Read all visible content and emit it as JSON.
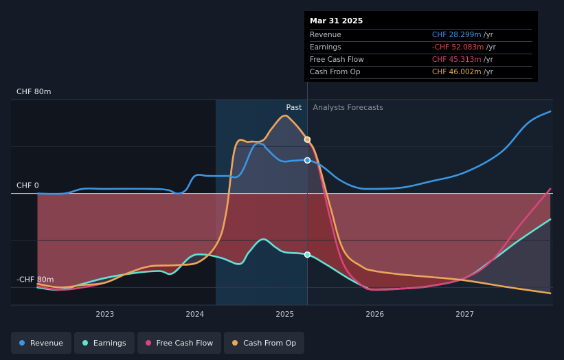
{
  "chart_data": {
    "type": "line",
    "currency": "CHF",
    "y_unit": "m",
    "ylim": [
      -95,
      80
    ],
    "xlim": [
      2022.2,
      2027.98
    ],
    "x_ticks": [
      2023,
      2024,
      2025,
      2026,
      2027
    ],
    "x_tick_labels": [
      "2023",
      "2024",
      "2025",
      "2026",
      "2027"
    ],
    "y_labels": [
      {
        "value": 80,
        "text": "CHF 80m"
      },
      {
        "value": 0,
        "text": "CHF 0"
      },
      {
        "value": -80,
        "text": "-CHF 80m"
      }
    ],
    "divider_x": 2025.25,
    "past_label": "Past",
    "forecast_label": "Analysts Forecasts",
    "series": [
      {
        "name": "Revenue",
        "color": "#3b97e3",
        "points": [
          [
            2022.25,
            0
          ],
          [
            2022.55,
            0
          ],
          [
            2022.75,
            4
          ],
          [
            2023.0,
            4
          ],
          [
            2023.5,
            4
          ],
          [
            2023.7,
            3
          ],
          [
            2023.8,
            0
          ],
          [
            2023.9,
            3
          ],
          [
            2024.0,
            15
          ],
          [
            2024.15,
            15
          ],
          [
            2024.35,
            15
          ],
          [
            2024.5,
            16
          ],
          [
            2024.65,
            40
          ],
          [
            2024.75,
            42
          ],
          [
            2024.8,
            38
          ],
          [
            2024.95,
            28
          ],
          [
            2025.1,
            28
          ],
          [
            2025.25,
            28.3
          ],
          [
            2025.4,
            24
          ],
          [
            2025.6,
            12
          ],
          [
            2025.8,
            5
          ],
          [
            2026.0,
            4
          ],
          [
            2026.3,
            5
          ],
          [
            2026.6,
            10
          ],
          [
            2027.0,
            18
          ],
          [
            2027.4,
            35
          ],
          [
            2027.7,
            60
          ],
          [
            2027.95,
            70
          ]
        ]
      },
      {
        "name": "Earnings",
        "color": "#5fe3d6",
        "points": [
          [
            2022.25,
            -80
          ],
          [
            2022.5,
            -82
          ],
          [
            2022.75,
            -77
          ],
          [
            2023.0,
            -72
          ],
          [
            2023.3,
            -68
          ],
          [
            2023.6,
            -66
          ],
          [
            2023.75,
            -68
          ],
          [
            2023.95,
            -54
          ],
          [
            2024.1,
            -52
          ],
          [
            2024.3,
            -55
          ],
          [
            2024.5,
            -60
          ],
          [
            2024.6,
            -50
          ],
          [
            2024.75,
            -39
          ],
          [
            2024.9,
            -46
          ],
          [
            2025.0,
            -50
          ],
          [
            2025.25,
            -52.1
          ],
          [
            2025.45,
            -60
          ],
          [
            2025.7,
            -72
          ],
          [
            2025.9,
            -80
          ],
          [
            2026.0,
            -82
          ],
          [
            2026.3,
            -81
          ],
          [
            2026.6,
            -79
          ],
          [
            2027.0,
            -72
          ],
          [
            2027.3,
            -57
          ],
          [
            2027.6,
            -40
          ],
          [
            2027.95,
            -22
          ]
        ]
      },
      {
        "name": "Free Cash Flow",
        "color": "#d9457b",
        "points": [
          [
            2022.25,
            -79
          ],
          [
            2022.5,
            -82
          ],
          [
            2022.75,
            -80
          ],
          [
            2023.0,
            -76
          ],
          [
            2023.25,
            -68
          ],
          [
            2023.5,
            -62
          ],
          [
            2023.8,
            -61
          ],
          [
            2024.05,
            -58
          ],
          [
            2024.25,
            -42
          ],
          [
            2024.35,
            -15
          ],
          [
            2024.45,
            40
          ],
          [
            2024.6,
            44
          ],
          [
            2024.75,
            45
          ],
          [
            2024.85,
            55
          ],
          [
            2024.98,
            66
          ],
          [
            2025.08,
            62
          ],
          [
            2025.25,
            45.3
          ],
          [
            2025.35,
            30
          ],
          [
            2025.5,
            -20
          ],
          [
            2025.65,
            -60
          ],
          [
            2025.85,
            -78
          ],
          [
            2026.0,
            -82
          ],
          [
            2026.3,
            -81
          ],
          [
            2026.6,
            -79
          ],
          [
            2027.0,
            -72
          ],
          [
            2027.3,
            -57
          ],
          [
            2027.6,
            -28
          ],
          [
            2027.95,
            4
          ]
        ]
      },
      {
        "name": "Cash From Op",
        "color": "#e8a958",
        "points": [
          [
            2022.25,
            -77
          ],
          [
            2022.5,
            -80
          ],
          [
            2022.75,
            -78
          ],
          [
            2023.0,
            -76
          ],
          [
            2023.25,
            -68
          ],
          [
            2023.5,
            -62
          ],
          [
            2023.8,
            -61
          ],
          [
            2024.05,
            -58
          ],
          [
            2024.25,
            -42
          ],
          [
            2024.35,
            -15
          ],
          [
            2024.45,
            40
          ],
          [
            2024.6,
            44
          ],
          [
            2024.75,
            45
          ],
          [
            2024.85,
            55
          ],
          [
            2024.98,
            66
          ],
          [
            2025.08,
            62
          ],
          [
            2025.25,
            46.0
          ],
          [
            2025.35,
            32
          ],
          [
            2025.5,
            -10
          ],
          [
            2025.65,
            -48
          ],
          [
            2025.85,
            -62
          ],
          [
            2026.0,
            -66
          ],
          [
            2026.3,
            -69
          ],
          [
            2026.6,
            -71
          ],
          [
            2027.0,
            -74
          ],
          [
            2027.5,
            -80
          ],
          [
            2027.95,
            -85
          ]
        ]
      }
    ],
    "markers": [
      {
        "series": "Revenue",
        "x": 2025.25,
        "y": 28.3
      },
      {
        "series": "Earnings",
        "x": 2025.25,
        "y": -52.1
      },
      {
        "series": "Cash From Op",
        "x": 2025.25,
        "y": 46.0
      }
    ]
  },
  "tooltip": {
    "date": "Mar 31 2025",
    "unit": " /yr",
    "rows": [
      {
        "label": "Revenue",
        "value": "CHF 28.299m",
        "color": "#3b97e3"
      },
      {
        "label": "Earnings",
        "value": "-CHF 52.083m",
        "color": "#e8484f"
      },
      {
        "label": "Free Cash Flow",
        "value": "CHF 45.313m",
        "color": "#d9457b"
      },
      {
        "label": "Cash From Op",
        "value": "CHF 46.002m",
        "color": "#e8a958"
      }
    ]
  },
  "legend": [
    {
      "label": "Revenue",
      "color": "#3b97e3"
    },
    {
      "label": "Earnings",
      "color": "#5fe3d6"
    },
    {
      "label": "Free Cash Flow",
      "color": "#d9457b"
    },
    {
      "label": "Cash From Op",
      "color": "#e8a958"
    }
  ]
}
